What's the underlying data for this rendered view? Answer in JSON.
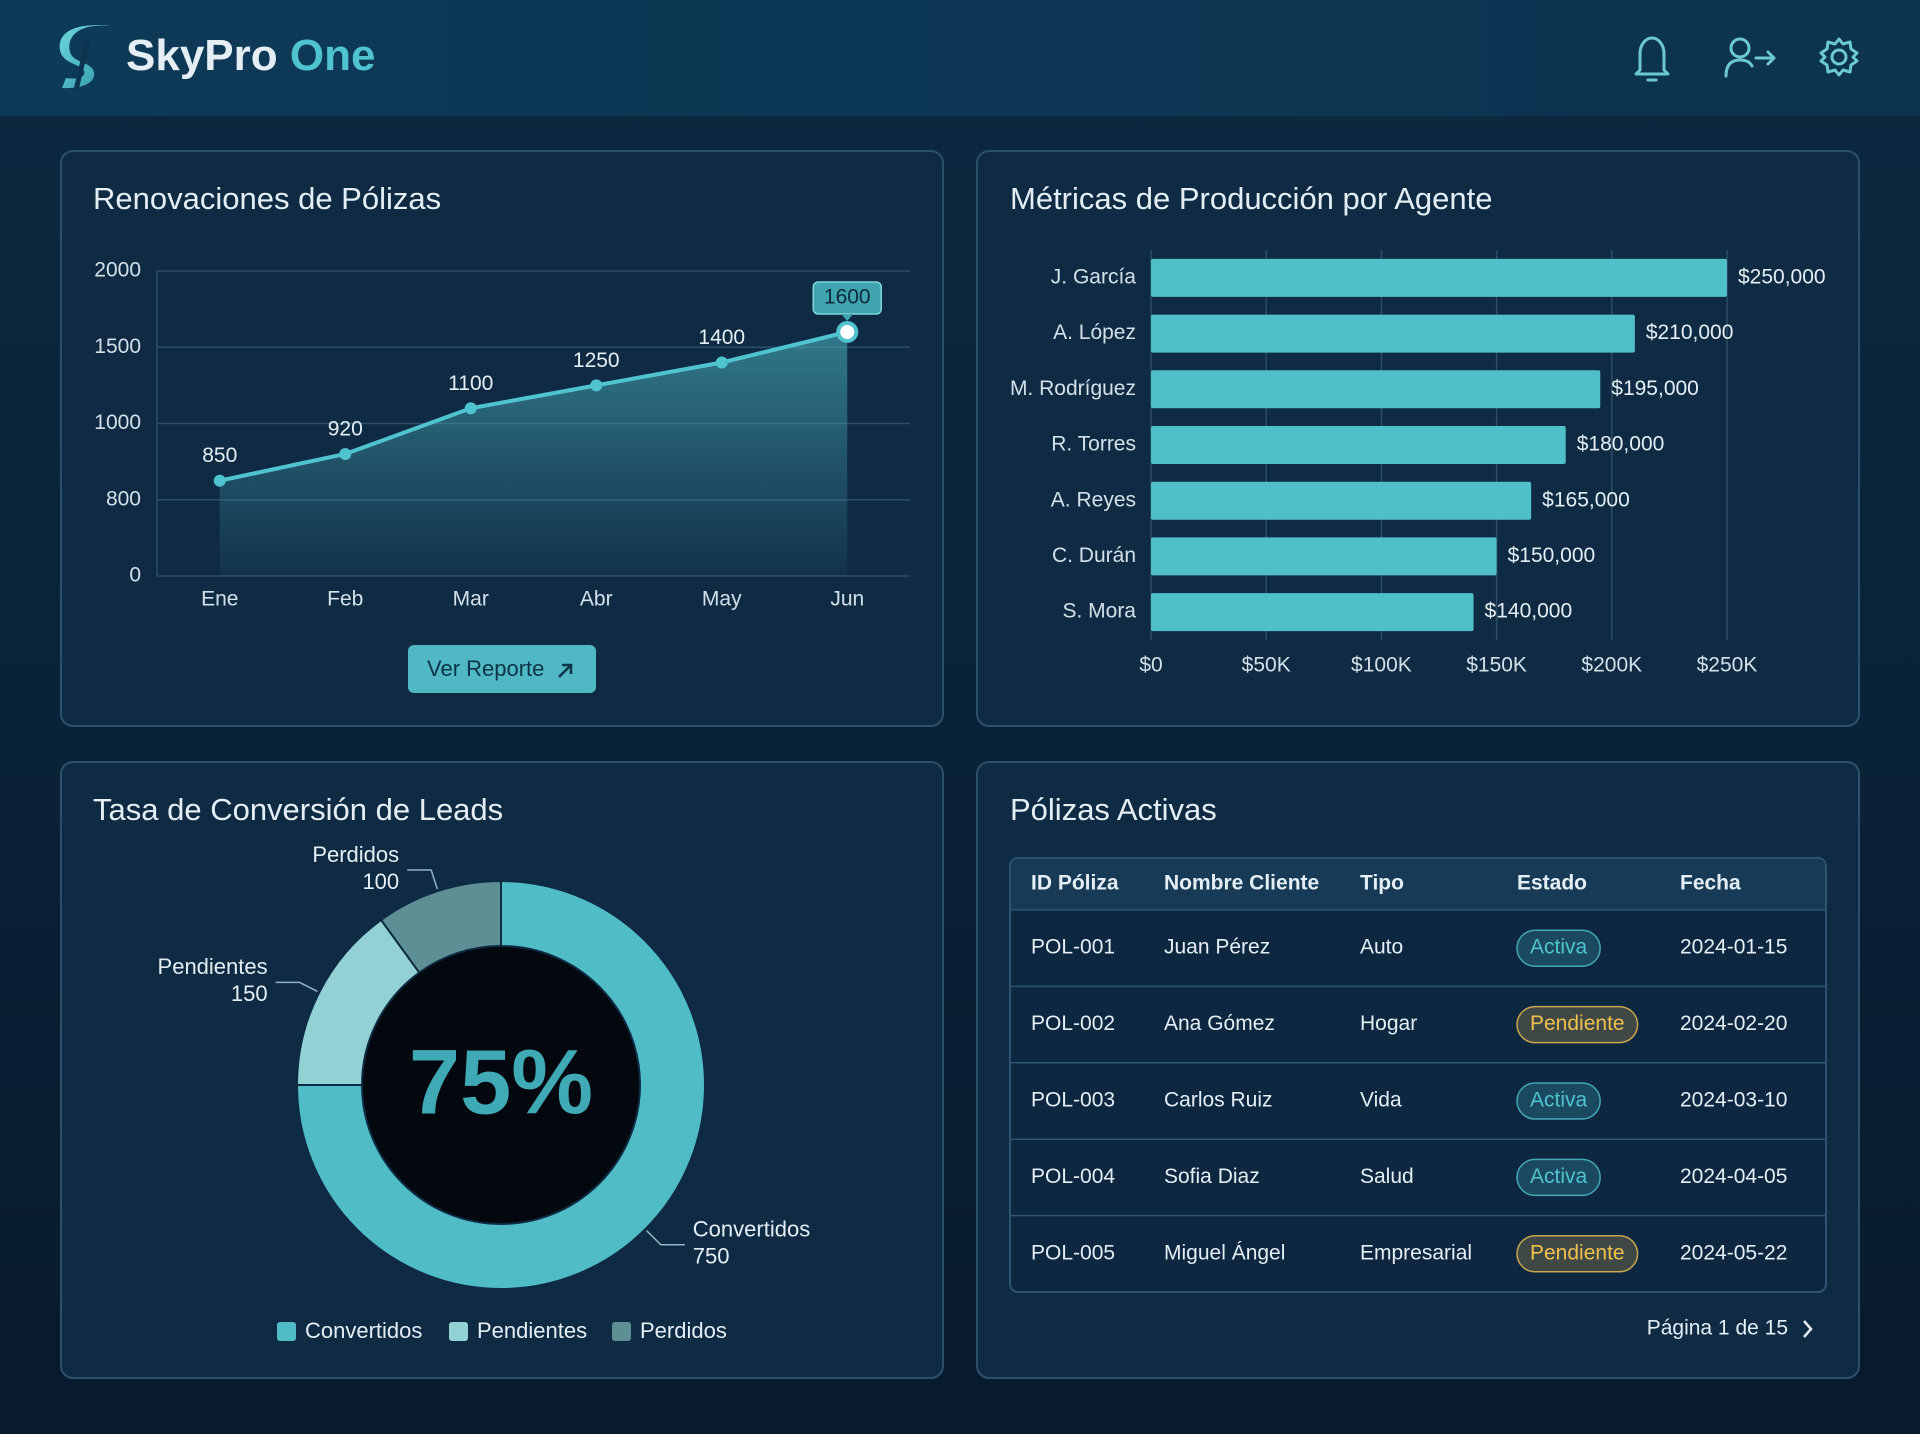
{
  "header": {
    "brand_name": "SkyPro",
    "brand_suffix": "One"
  },
  "chart_data": [
    {
      "type": "line",
      "title": "Renovaciones de Pólizas",
      "categories": [
        "Ene",
        "Feb",
        "Mar",
        "Abr",
        "May",
        "Jun"
      ],
      "values": [
        850,
        920,
        1100,
        1250,
        1400,
        1600
      ],
      "color": "#4fc3cf",
      "ylim": [
        0,
        2000
      ],
      "yticks": [
        0,
        800,
        1000,
        1500,
        2000
      ],
      "grid": true,
      "button_label": "Ver Reporte"
    },
    {
      "type": "bar",
      "orientation": "horizontal",
      "title": "Métricas de Producción por Agente",
      "categories": [
        "J. García",
        "A. López",
        "M. Rodríguez",
        "R. Torres",
        "A. Reyes",
        "C. Durán",
        "S. Mora"
      ],
      "values": [
        250000,
        210000,
        195000,
        180000,
        165000,
        150000,
        140000
      ],
      "value_labels": [
        "$250,000",
        "$210,000",
        "$195,000",
        "$180,000",
        "$165,000",
        "$150,000",
        "$140,000"
      ],
      "color": "#4fc0c8",
      "xlim": [
        0,
        250000
      ],
      "xticks": [
        {
          "value": 0,
          "label": "$0"
        },
        {
          "value": 50000,
          "label": "$50K"
        },
        {
          "value": 100000,
          "label": "$100K"
        },
        {
          "value": 150000,
          "label": "$150K"
        },
        {
          "value": 200000,
          "label": "$200K"
        },
        {
          "value": 250000,
          "label": "$250K"
        }
      ],
      "grid": true
    },
    {
      "type": "donut",
      "title": "Tasa de Conversión de Leads",
      "center_label": "75%",
      "categories": [
        "Convertidos",
        "Pendientes",
        "Perdidos"
      ],
      "values": [
        750,
        150,
        100
      ],
      "colors": [
        "#4fbcc6",
        "#93d2d4",
        "#5d8f95"
      ],
      "legend": "bottom"
    }
  ],
  "table": {
    "title": "Pólizas Activas",
    "columns": [
      "ID Póliza",
      "Nombre Cliente",
      "Tipo",
      "Estado",
      "Fecha"
    ],
    "rows": [
      [
        "POL-001",
        "Juan Pérez",
        "Auto",
        "Activa",
        "2024-01-15"
      ],
      [
        "POL-002",
        "Ana Gómez",
        "Hogar",
        "Pendiente",
        "2024-02-20"
      ],
      [
        "POL-003",
        "Carlos Ruiz",
        "Vida",
        "Activa",
        "2024-03-10"
      ],
      [
        "POL-004",
        "Sofia Diaz",
        "Salud",
        "Activa",
        "2024-04-05"
      ],
      [
        "POL-005",
        "Miguel Ángel",
        "Empresarial",
        "Pendiente",
        "2024-05-22"
      ]
    ],
    "status_colors": {
      "Activa": "#4fc3cf",
      "Pendiente": "#f0c050"
    },
    "pagination": "Página 1 de 15"
  }
}
